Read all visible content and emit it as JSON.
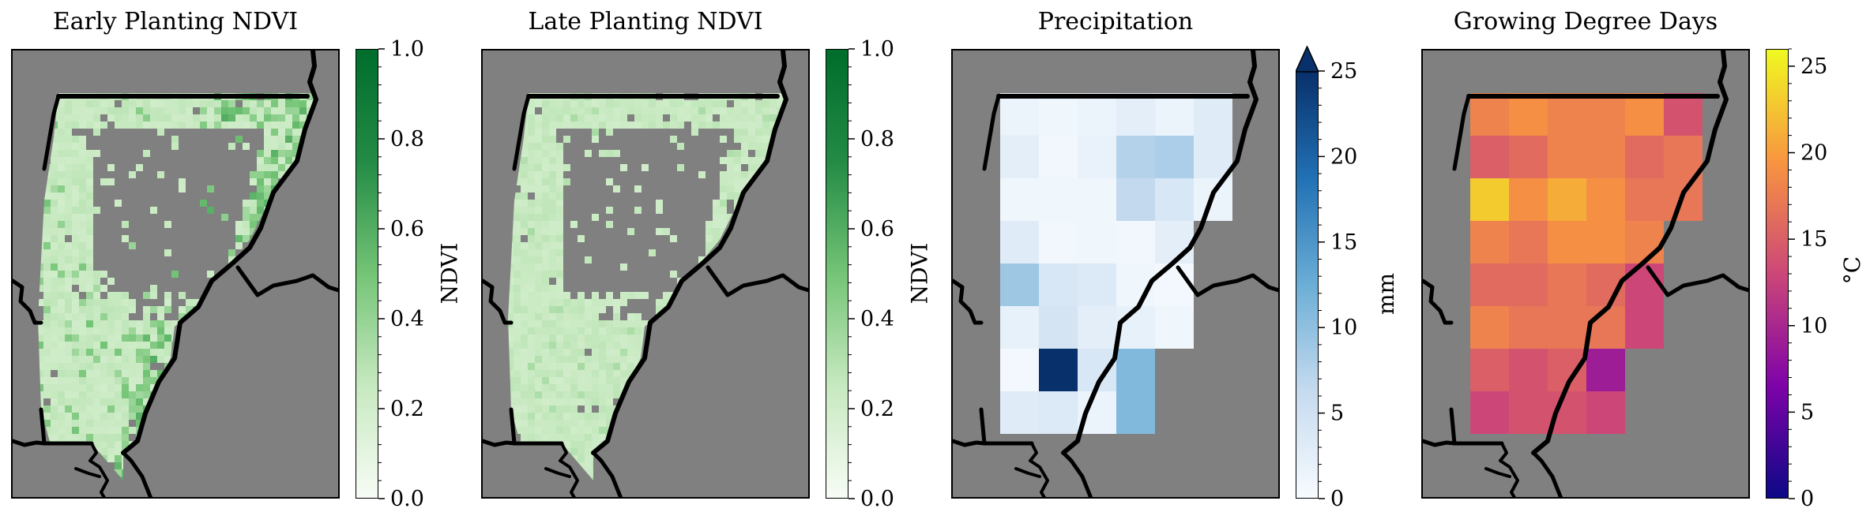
{
  "panels": [
    {
      "id": "early",
      "title": "Early Planting NDVI",
      "colorbar_label": "NDVI"
    },
    {
      "id": "late",
      "title": "Late Planting NDVI",
      "colorbar_label": "NDVI"
    },
    {
      "id": "precip",
      "title": "Precipitation",
      "colorbar_label": "mm"
    },
    {
      "id": "gdd",
      "title": "Growing Degree Days",
      "colorbar_label": "°C"
    }
  ],
  "chart_data": [
    {
      "type": "heatmap",
      "title": "Early Planting NDVI",
      "colorbar": {
        "label": "NDVI",
        "range": [
          0.0,
          1.0
        ],
        "ticks": [
          0.0,
          0.2,
          0.4,
          0.6,
          0.8,
          1.0
        ],
        "tick_labels": [
          "0.0",
          "0.2",
          "0.4",
          "0.6",
          "0.8",
          "1.0"
        ],
        "colormap": "Greens",
        "extend": "neither"
      },
      "values_description": "fine grid of field pixels, mostly 0.2–0.3 with scattered 0.4–0.6 values along the eastern side",
      "typical_value": 0.25,
      "high_values_range": [
        0.4,
        0.6
      ]
    },
    {
      "type": "heatmap",
      "title": "Late Planting NDVI",
      "colorbar": {
        "label": "NDVI",
        "range": [
          0.0,
          1.0
        ],
        "ticks": [
          0.0,
          0.2,
          0.4,
          0.6,
          0.8,
          1.0
        ],
        "tick_labels": [
          "0.0",
          "0.2",
          "0.4",
          "0.6",
          "0.8",
          "1.0"
        ],
        "colormap": "Greens",
        "extend": "neither"
      },
      "typical_value": 0.25
    },
    {
      "type": "heatmap",
      "title": "Precipitation",
      "colorbar": {
        "label": "mm",
        "range": [
          0,
          25
        ],
        "ticks": [
          0,
          5,
          10,
          15,
          20,
          25
        ],
        "tick_labels": [
          "0",
          "5",
          "10",
          "15",
          "20",
          "25"
        ],
        "colormap": "Blues",
        "extend": "max"
      },
      "grid": [
        [
          1.5,
          1.0,
          1.5,
          2.5,
          1.5,
          3.0
        ],
        [
          2.5,
          0.8,
          1.8,
          7.5,
          8.0,
          3.0
        ],
        [
          1.0,
          1.0,
          1.0,
          6.5,
          4.0,
          1.5
        ],
        [
          3.0,
          0.8,
          1.0,
          0.8,
          2.5,
          null
        ],
        [
          9.0,
          4.0,
          3.5,
          1.0,
          0.5,
          null
        ],
        [
          2.0,
          4.5,
          2.5,
          2.0,
          1.0,
          null
        ],
        [
          0.5,
          26.0,
          4.0,
          11.0,
          null,
          null
        ],
        [
          3.0,
          3.5,
          1.5,
          11.0,
          null,
          null
        ]
      ]
    },
    {
      "type": "heatmap",
      "title": "Growing Degree Days",
      "colorbar": {
        "label": "°C",
        "range": [
          0,
          26
        ],
        "ticks": [
          0,
          5,
          10,
          15,
          20,
          25
        ],
        "tick_labels": [
          "0",
          "5",
          "10",
          "15",
          "20",
          "25"
        ],
        "colormap": "plasma",
        "extend": "neither"
      },
      "grid": [
        [
          18,
          19,
          18,
          18,
          19,
          14
        ],
        [
          15,
          16,
          18,
          18,
          16,
          17
        ],
        [
          23,
          19,
          21,
          19,
          17,
          17
        ],
        [
          18,
          17,
          19,
          19,
          18,
          null
        ],
        [
          16,
          16,
          17,
          16,
          13,
          null
        ],
        [
          18,
          17,
          17,
          17,
          13,
          null
        ],
        [
          15,
          14,
          15,
          9,
          null,
          null
        ],
        [
          13,
          14,
          14,
          13,
          null,
          null
        ]
      ]
    }
  ]
}
